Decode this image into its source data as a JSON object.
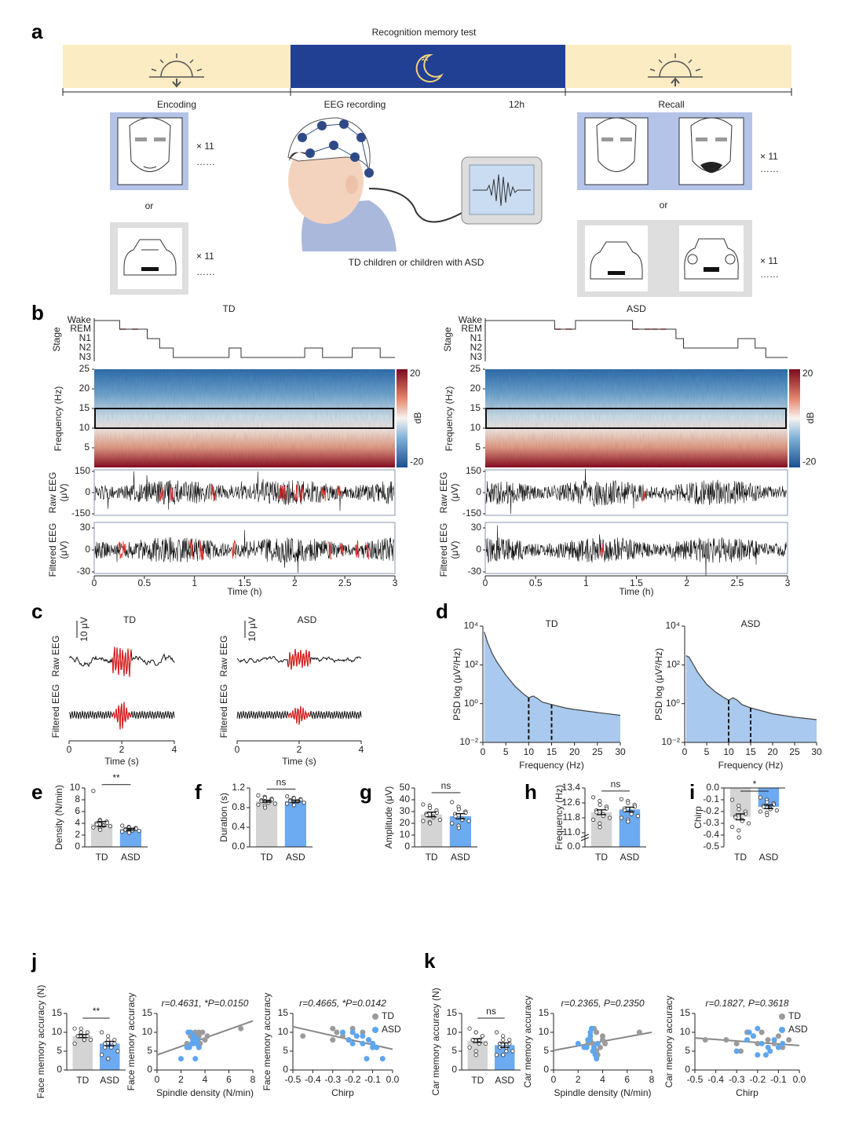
{
  "figure": {
    "panel_labels": [
      "a",
      "b",
      "c",
      "d",
      "e",
      "f",
      "g",
      "h",
      "i",
      "j",
      "k"
    ],
    "a": {
      "title": "Recognition memory test",
      "encoding": "Encoding",
      "eeg": "EEG  recording",
      "duration": "12h",
      "recall": "Recall",
      "times": [
        "× 11",
        "× 11",
        "× 11",
        "× 11"
      ],
      "dots": "……",
      "or": "or",
      "subjects": "TD children or children with ASD"
    },
    "b": {
      "groups": [
        "TD",
        "ASD"
      ],
      "stages": [
        "Wake",
        "REM",
        "N1",
        "N2",
        "N3"
      ],
      "stage_label": "Stage",
      "freq_label": "Frequency (Hz)",
      "freq_ticks": [
        5,
        10,
        15,
        20,
        25
      ],
      "freq_lim": [
        0,
        25
      ],
      "cbar_label": "dB",
      "cbar_ticks": [
        20,
        -20
      ],
      "raw_label": [
        "Raw EEG",
        "(μV)"
      ],
      "raw_ticks": [
        150,
        0,
        -150
      ],
      "filt_label": [
        "Filtered EEG",
        "(μV)"
      ],
      "filt_ticks": [
        30,
        0,
        -30
      ],
      "time_ticks": [
        0,
        0.5,
        1,
        1.5,
        2,
        2.5,
        3
      ],
      "time_label": "Time (h)"
    },
    "c": {
      "groups": [
        "TD",
        "ASD"
      ],
      "scale": "10 μV",
      "raw": "Raw EEG",
      "filtered": "Filtered EEG",
      "time_ticks": [
        0,
        2,
        4
      ],
      "time_label": "Time (s)"
    }
  },
  "chart_data": [
    {
      "type": "psd",
      "title": "TD",
      "xlabel": "Frequency (Hz)",
      "ylabel": "PSD log (μV²/Hz)",
      "log_y": true,
      "color": "#a9c9ee",
      "x": [
        0.3,
        1,
        2,
        3,
        5,
        7,
        9,
        10,
        11,
        12,
        13,
        15,
        18,
        20,
        25,
        30
      ],
      "values": [
        5000,
        1500,
        400,
        150,
        30,
        8,
        3,
        2,
        2.5,
        1.8,
        1.2,
        0.9,
        0.6,
        0.5,
        0.35,
        0.25
      ],
      "markers": [
        10,
        15
      ],
      "xlim": [
        0,
        30
      ],
      "xticks": [
        0,
        5,
        10,
        15,
        20,
        25,
        30
      ],
      "ylim": [
        0.01,
        10000
      ],
      "yticks": [
        {
          "value": 0.01,
          "label": "10⁻²"
        },
        {
          "value": 1,
          "label": "10⁰"
        },
        {
          "value": 100,
          "label": "10²"
        },
        {
          "value": 10000,
          "label": "10⁴"
        }
      ]
    },
    {
      "type": "psd",
      "title": "ASD",
      "xlabel": "Frequency (Hz)",
      "ylabel": "PSD log (μV²/Hz)",
      "log_y": true,
      "color": "#a9c9ee",
      "x": [
        0.3,
        1,
        2,
        3,
        5,
        7,
        9,
        10,
        11,
        12,
        13,
        15,
        18,
        20,
        25,
        30
      ],
      "values": [
        300,
        250,
        100,
        40,
        10,
        4,
        2,
        1.5,
        2,
        1.5,
        0.9,
        0.6,
        0.4,
        0.3,
        0.2,
        0.15
      ],
      "markers": [
        10,
        15
      ],
      "xlim": [
        0,
        30
      ],
      "xticks": [
        0,
        5,
        10,
        15,
        20,
        25,
        30
      ],
      "ylim": [
        0.01,
        10000
      ],
      "yticks": [
        {
          "value": 0.01,
          "label": "10⁻²"
        },
        {
          "value": 1,
          "label": "10⁰"
        },
        {
          "value": 100,
          "label": "10²"
        },
        {
          "value": 10000,
          "label": "10⁴"
        }
      ]
    },
    {
      "type": "bar",
      "ylabel": "Density (N/min)",
      "categories": [
        "TD",
        "ASD"
      ],
      "colors": [
        "#d4d4d4",
        "#6caaf2"
      ],
      "values": [
        3.9,
        3.0
      ],
      "errors": [
        0.4,
        0.15
      ],
      "sig": "**",
      "ylim": [
        0,
        10
      ],
      "yticks": [
        0,
        2,
        4,
        6,
        8,
        10
      ],
      "points": [
        [
          9.5,
          4.6,
          4.4,
          4.3,
          4.1,
          4.0,
          3.8,
          3.7,
          3.6,
          3.5,
          3.3,
          3.1,
          2.9
        ],
        [
          3.6,
          3.4,
          3.3,
          3.2,
          3.1,
          3.0,
          2.9,
          2.8,
          2.8,
          2.7,
          2.6,
          2.5,
          2.4
        ]
      ]
    },
    {
      "type": "bar",
      "ylabel": "Duration (s)",
      "categories": [
        "TD",
        "ASD"
      ],
      "colors": [
        "#d4d4d4",
        "#6caaf2"
      ],
      "values": [
        0.93,
        0.93
      ],
      "errors": [
        0.02,
        0.02
      ],
      "sig": "ns",
      "ylim": [
        0,
        1.2
      ],
      "yticks": [
        {
          "value": 0,
          "label": "0.0"
        },
        0.4,
        0.8,
        1.2
      ],
      "points": [
        [
          1.05,
          1.02,
          1.0,
          0.98,
          0.96,
          0.95,
          0.93,
          0.92,
          0.9,
          0.88,
          0.86,
          0.84,
          0.8
        ],
        [
          1.03,
          1.0,
          0.99,
          0.97,
          0.96,
          0.95,
          0.94,
          0.93,
          0.92,
          0.9,
          0.88,
          0.86,
          0.85
        ]
      ]
    },
    {
      "type": "bar",
      "ylabel": "Amplitude (μV)",
      "categories": [
        "TD",
        "ASD"
      ],
      "colors": [
        "#d4d4d4",
        "#6caaf2"
      ],
      "values": [
        27.5,
        26
      ],
      "errors": [
        2,
        2.2
      ],
      "sig": "ns",
      "ylim": [
        0,
        50
      ],
      "yticks": [
        0,
        10,
        20,
        30,
        40,
        50
      ],
      "points": [
        [
          36,
          35,
          33,
          31,
          29,
          28,
          27,
          26,
          25,
          23,
          22,
          21,
          20
        ],
        [
          38,
          34,
          32,
          30,
          29,
          28,
          26,
          24,
          23,
          22,
          20,
          18,
          16
        ]
      ]
    },
    {
      "type": "bar",
      "ylabel": "Frequency (Hz)",
      "categories": [
        "TD",
        "ASD"
      ],
      "colors": [
        "#d4d4d4",
        "#6caaf2"
      ],
      "values": [
        12.1,
        12.25
      ],
      "errors": [
        0.13,
        0.12
      ],
      "sig": "ns",
      "ylim": [
        0,
        13.4
      ],
      "axis_break": 11,
      "yticks": [
        {
          "value": 0,
          "label": "0.0"
        },
        {
          "value": 11,
          "label": "11.0"
        },
        11.8,
        12.6,
        13.4
      ],
      "points": [
        [
          12.9,
          12.7,
          12.5,
          12.4,
          12.3,
          12.2,
          12.1,
          12.0,
          11.9,
          11.8,
          11.7,
          11.5,
          11.3
        ],
        [
          12.8,
          12.7,
          12.6,
          12.5,
          12.4,
          12.3,
          12.2,
          12.1,
          12.0,
          11.9,
          11.8,
          11.7,
          11.6
        ]
      ]
    },
    {
      "type": "bar",
      "ylabel": "Chirp",
      "categories": [
        "TD",
        "ASD"
      ],
      "colors": [
        "#d4d4d4",
        "#6caaf2"
      ],
      "values": [
        -0.245,
        -0.16
      ],
      "errors": [
        0.025,
        0.015
      ],
      "sig": "*",
      "ylim": [
        -0.5,
        0
      ],
      "yticks": [
        {
          "value": 0,
          "label": "0.0"
        },
        -0.1,
        -0.2,
        -0.3,
        -0.4,
        -0.5
      ],
      "points": [
        [
          -0.1,
          -0.15,
          -0.18,
          -0.2,
          -0.22,
          -0.24,
          -0.25,
          -0.27,
          -0.28,
          -0.3,
          -0.33,
          -0.36,
          -0.42
        ],
        [
          -0.08,
          -0.1,
          -0.12,
          -0.13,
          -0.14,
          -0.15,
          -0.16,
          -0.17,
          -0.18,
          -0.19,
          -0.2,
          -0.21,
          -0.23
        ]
      ]
    },
    {
      "type": "bar",
      "ylabel": "Face memory accuracy (N)",
      "categories": [
        "TD",
        "ASD"
      ],
      "colors": [
        "#d4d4d4",
        "#6caaf2"
      ],
      "values": [
        9,
        7
      ],
      "errors": [
        0.4,
        0.6
      ],
      "sig": "**",
      "ylim": [
        0,
        15
      ],
      "yticks": [
        0,
        5,
        10,
        15
      ],
      "points": [
        [
          11,
          11,
          10,
          10,
          9,
          9,
          9,
          8,
          8,
          8,
          7,
          10,
          9
        ],
        [
          10,
          9,
          8,
          8,
          7,
          7,
          6,
          6,
          6,
          5,
          4,
          3,
          3
        ]
      ]
    },
    {
      "type": "scatter",
      "ylabel": "Face memory accuracy",
      "xlabel": "Spindle density (N/min)",
      "annotation": "r=0.4631, *P=0.0150",
      "xlim": [
        0,
        8
      ],
      "xticks": [
        0,
        2,
        4,
        6,
        8
      ],
      "ylim": [
        0,
        15
      ],
      "yticks": [
        0,
        5,
        10,
        15
      ],
      "fit": {
        "x": [
          0,
          8
        ],
        "y": [
          4,
          13
        ]
      },
      "series": [
        {
          "color": "#9b9b9b",
          "x": [
            2.5,
            3,
            3.2,
            3.5,
            3.3,
            3.8,
            4,
            3.6,
            4.2,
            3,
            7,
            3.5,
            2.8
          ],
          "values": [
            7,
            9,
            10,
            9,
            8,
            10,
            8,
            7,
            9,
            8,
            11,
            10,
            9
          ]
        },
        {
          "color": "#5ea6ef",
          "x": [
            2,
            2.5,
            2.8,
            3,
            2.7,
            3.2,
            3.3,
            3,
            3.5,
            2.6,
            3.1,
            2.9,
            3.4
          ],
          "values": [
            3,
            6,
            10,
            7,
            6,
            3,
            7,
            8,
            6,
            10,
            9,
            7,
            8
          ]
        }
      ]
    },
    {
      "type": "scatter",
      "ylabel": "Face memory accuracy",
      "xlabel": "Chirp",
      "annotation": "r=0.4665, *P=0.0142",
      "legend": "upper right",
      "xlim": [
        -0.5,
        0
      ],
      "xticks": [
        -0.5,
        -0.4,
        -0.3,
        -0.2,
        -0.1,
        {
          "value": 0,
          "label": "0.0"
        }
      ],
      "ylim": [
        0,
        15
      ],
      "yticks": [
        0,
        5,
        10,
        15
      ],
      "fit": {
        "x": [
          -0.5,
          0
        ],
        "y": [
          11.5,
          5.5
        ]
      },
      "series": [
        {
          "name": "TD",
          "color": "#9b9b9b",
          "x": [
            -0.45,
            -0.3,
            -0.28,
            -0.25,
            -0.2,
            -0.22,
            -0.18,
            -0.15,
            -0.12,
            -0.1,
            -0.08,
            -0.3,
            -0.2
          ],
          "values": [
            9,
            8,
            10,
            9,
            11,
            8,
            9,
            10,
            8,
            7,
            6,
            11,
            10
          ]
        },
        {
          "name": "ASD",
          "color": "#5ea6ef",
          "x": [
            -0.25,
            -0.22,
            -0.2,
            -0.18,
            -0.15,
            -0.12,
            -0.1,
            -0.08,
            -0.05,
            -0.2,
            -0.15,
            -0.1,
            -0.13
          ],
          "values": [
            10,
            8,
            7,
            9,
            7,
            8,
            6,
            6,
            3,
            10,
            9,
            7,
            3
          ]
        }
      ]
    },
    {
      "type": "bar",
      "ylabel": "Car memory accuracy (N)",
      "categories": [
        "TD",
        "ASD"
      ],
      "colors": [
        "#d4d4d4",
        "#6caaf2"
      ],
      "values": [
        7.8,
        6.6
      ],
      "errors": [
        0.5,
        0.6
      ],
      "sig": "ns",
      "ylim": [
        0,
        15
      ],
      "yticks": [
        0,
        5,
        10,
        15
      ],
      "points": [
        [
          11,
          10,
          10,
          9,
          9,
          8,
          8,
          8,
          7,
          7,
          6,
          5,
          4
        ],
        [
          10,
          9,
          8,
          8,
          7,
          7,
          6,
          6,
          5,
          5,
          4,
          4,
          4
        ]
      ]
    },
    {
      "type": "scatter",
      "ylabel": "Car memory accuracy",
      "xlabel": "Spindle density (N/min)",
      "annotation": "r=0.2365, P=0.2350",
      "xlim": [
        0,
        8
      ],
      "xticks": [
        0,
        2,
        4,
        6,
        8
      ],
      "ylim": [
        0,
        15
      ],
      "yticks": [
        0,
        5,
        10,
        15
      ],
      "fit": {
        "x": [
          0,
          8
        ],
        "y": [
          5.2,
          10
        ]
      },
      "series": [
        {
          "color": "#9b9b9b",
          "x": [
            3,
            3.5,
            4,
            3.2,
            3.8,
            4.2,
            3.5,
            7,
            3,
            3.6,
            4,
            3.3,
            2.8
          ],
          "values": [
            8,
            10,
            9,
            7,
            6,
            7,
            5,
            10,
            9,
            4,
            8,
            11,
            7
          ]
        },
        {
          "color": "#5ea6ef",
          "x": [
            2,
            2.5,
            3,
            3.2,
            2.8,
            3.4,
            3.3,
            3,
            3.6,
            3.1,
            2.9,
            3.5,
            2.7
          ],
          "values": [
            7,
            6,
            10,
            5,
            8,
            4,
            6,
            9,
            7,
            11,
            8,
            3,
            6
          ]
        }
      ]
    },
    {
      "type": "scatter",
      "ylabel": "Car memory accuracy",
      "xlabel": "Chirp",
      "annotation": "r=0.1827, P=0.3618",
      "legend": "upper right",
      "xlim": [
        -0.5,
        0
      ],
      "xticks": [
        -0.5,
        -0.4,
        -0.3,
        -0.2,
        -0.1,
        {
          "value": 0,
          "label": "0.0"
        }
      ],
      "ylim": [
        0,
        15
      ],
      "yticks": [
        0,
        5,
        10,
        15
      ],
      "fit": {
        "x": [
          -0.5,
          0
        ],
        "y": [
          8.5,
          6.5
        ]
      },
      "series": [
        {
          "name": "TD",
          "color": "#9b9b9b",
          "x": [
            -0.45,
            -0.35,
            -0.3,
            -0.25,
            -0.22,
            -0.18,
            -0.15,
            -0.12,
            -0.1,
            -0.08,
            -0.28,
            -0.2,
            -0.05
          ],
          "values": [
            8,
            8,
            7,
            10,
            9,
            10,
            8,
            7,
            9,
            6,
            5,
            7,
            8
          ]
        },
        {
          "name": "ASD",
          "color": "#5ea6ef",
          "x": [
            -0.3,
            -0.25,
            -0.22,
            -0.2,
            -0.18,
            -0.15,
            -0.12,
            -0.1,
            -0.08,
            -0.2,
            -0.16,
            -0.24,
            -0.14
          ],
          "values": [
            5,
            8,
            9,
            11,
            7,
            6,
            8,
            6,
            7,
            4,
            4,
            10,
            5
          ]
        }
      ]
    }
  ]
}
